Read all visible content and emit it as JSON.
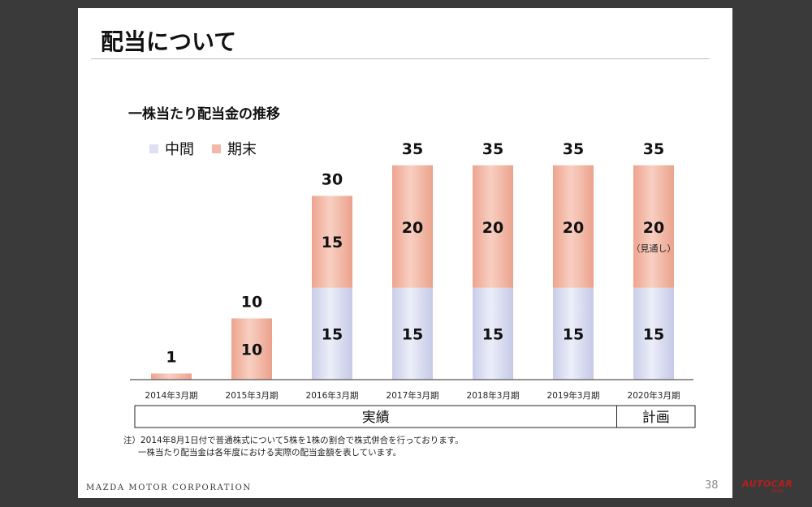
{
  "slide": {
    "title": "配当について",
    "subtitle": "一株当たり配当金の推移",
    "footnote_line1": "注）2014年8月1日付で普通株式について5株を1株の割合で株式併合を行っております。",
    "footnote_line2": "一株当たり配当金は各年度における実際の配当金額を表しています。",
    "brand": "MAZDA MOTOR CORPORATION",
    "page_number": "38",
    "watermark": "AUTOCAR",
    "watermark_sub": "JAPAN"
  },
  "colors": {
    "interim": "#dde0f2",
    "year_end": "#f2b9a8",
    "axis": "#555555"
  },
  "chart_data": {
    "type": "bar",
    "stacked": true,
    "categories": [
      "2014年3月期",
      "2015年3月期",
      "2016年3月期",
      "2017年3月期",
      "2018年3月期",
      "2019年3月期",
      "2020年3月期"
    ],
    "series": [
      {
        "name": "中間",
        "values": [
          0,
          0,
          15,
          15,
          15,
          15,
          15
        ],
        "labels": [
          "",
          "",
          "15",
          "15",
          "15",
          "15",
          "15"
        ]
      },
      {
        "name": "期末",
        "values": [
          1,
          10,
          15,
          20,
          20,
          20,
          20
        ],
        "labels": [
          "",
          "10",
          "15",
          "20",
          "20",
          "20",
          "20"
        ]
      }
    ],
    "totals": [
      "1",
      "10",
      "30",
      "35",
      "35",
      "35",
      "35"
    ],
    "annotations": [
      {
        "category": "2020年3月期",
        "text": "（見通し）"
      }
    ],
    "groups": [
      {
        "label": "実績",
        "from": 0,
        "to": 5
      },
      {
        "label": "計画",
        "from": 6,
        "to": 6
      }
    ],
    "ylim": [
      0,
      35
    ],
    "grid": false,
    "legend": "top-left"
  }
}
